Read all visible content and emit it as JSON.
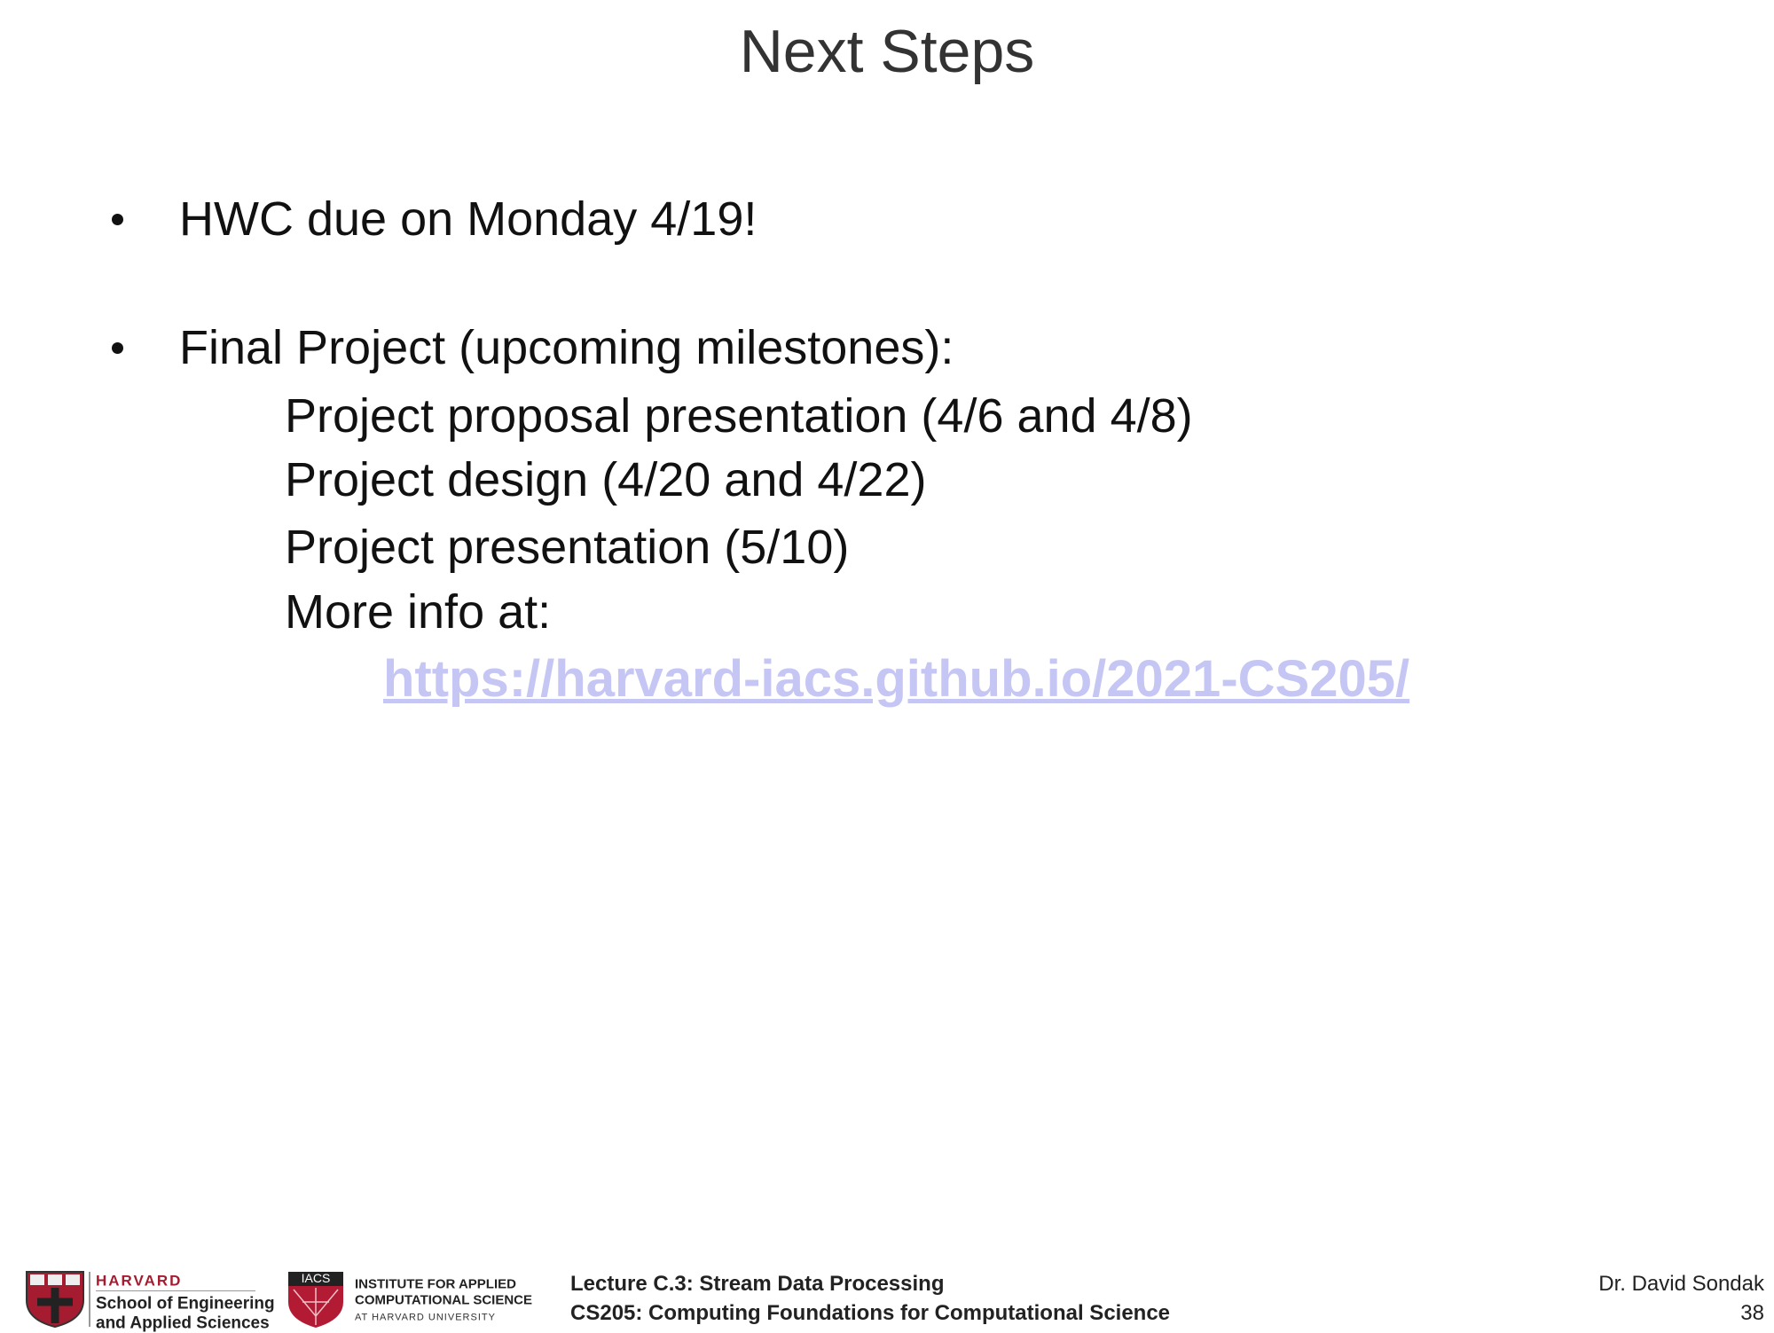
{
  "header": {
    "title": "Next Steps"
  },
  "bullets": [
    {
      "text": "HWC due on Monday 4/19!"
    },
    {
      "text": "Final Project (upcoming milestones):",
      "items": [
        "Project proposal presentation (4/6 and 4/8)",
        "Project design (4/20 and 4/22)",
        "Project presentation (5/10)",
        "More info at:"
      ],
      "link": "https://harvard-iacs.github.io/2021-CS205/"
    }
  ],
  "footer": {
    "seas": {
      "line1": "HARVARD",
      "line2": "School of Engineering",
      "line3": "and Applied Sciences"
    },
    "iacs": {
      "badge": "IACS",
      "line1": "INSTITUTE FOR APPLIED",
      "line2": "COMPUTATIONAL SCIENCE",
      "line3": "AT HARVARD UNIVERSITY"
    },
    "lecture": "Lecture C.3: Stream Data Processing",
    "course": "CS205: Computing Foundations for Computational Science",
    "author": "Dr. David Sondak",
    "page": "38"
  }
}
